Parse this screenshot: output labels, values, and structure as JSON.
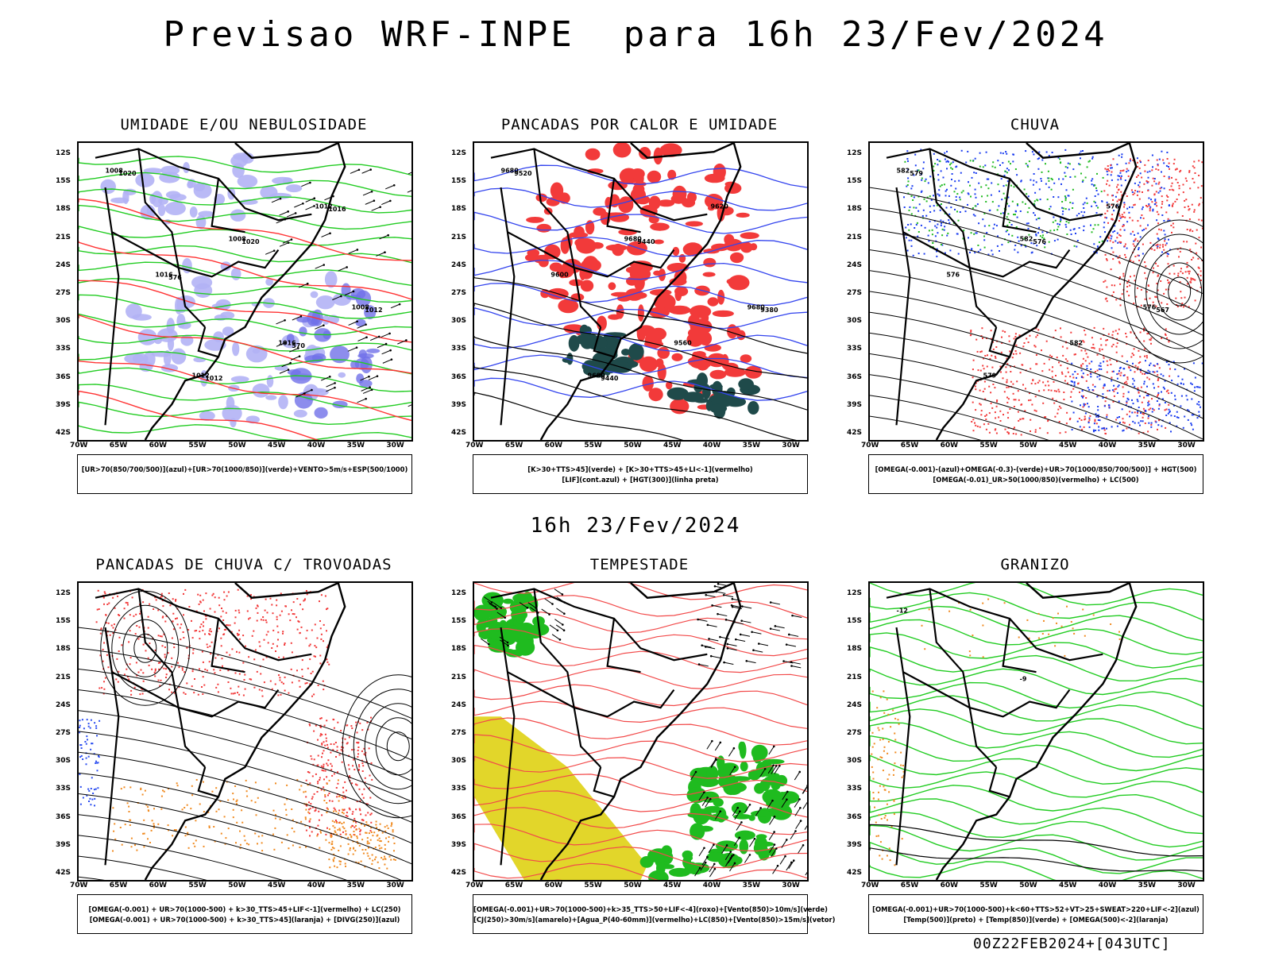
{
  "main_title": "Previsao WRF-INPE  para 16h 23/Fev/2024",
  "mid_title": "16h 23/Fev/2024",
  "footer": "00Z22FEB2024+[043UTC]",
  "lat_labels": [
    "12S",
    "15S",
    "18S",
    "21S",
    "24S",
    "27S",
    "30S",
    "33S",
    "36S",
    "39S",
    "42S"
  ],
  "lon_labels": [
    "70W",
    "65W",
    "60W",
    "55W",
    "50W",
    "45W",
    "40W",
    "35W",
    "30W"
  ],
  "panels": [
    {
      "title": "UMIDADE E/OU NEBULOSIDADE",
      "legend": [
        "[UR>70(850/700/500)](azul)+[UR>70(1000/850)](verde)+VENTO>5m/s+ESP(500/1000)"
      ],
      "colors": {
        "fill1": "#b3b3f5",
        "fill2": "#7070e8",
        "line1": "#22cc22",
        "line2": "#ff3333"
      },
      "contour_labels": [
        "1008",
        "1008",
        "1008",
        "1012",
        "1012",
        "1016",
        "1016",
        "1020",
        "1020",
        "1012",
        "1012",
        "1016",
        "576",
        "570"
      ]
    },
    {
      "title": "PANCADAS POR CALOR E UMIDADE",
      "legend": [
        "[K>30+TTS>45](verde) + [K>30+TTS>45+LI<-1](vermelho)",
        "[LIF](cont.azul) + [HGT(300)](linha preta)"
      ],
      "colors": {
        "fill1": "#f23a3a",
        "fill2": "#1f4a4a",
        "line1": "#3344ee"
      },
      "contour_labels": [
        "9680",
        "9680",
        "9680",
        "9680",
        "9620",
        "9600",
        "9560",
        "9520",
        "9440",
        "9380",
        "9440"
      ]
    },
    {
      "title": "CHUVA",
      "legend": [
        "[OMEGA(-0.001)-(azul)+OMEGA(-0.3)-(verde)+UR>70(1000/850/700/500)] + HGT(500)",
        "[OMEGA(-0.01)_UR>50(1000/850)(vermelho) + LC(500)"
      ],
      "colors": {
        "fill1": "#f23a3a",
        "fill2": "#1a3cf0",
        "fill3": "#22bb22"
      },
      "contour_labels": [
        "582",
        "582",
        "576",
        "579",
        "576",
        "576",
        "582",
        "579",
        "576",
        "567"
      ]
    },
    {
      "title": "PANCADAS DE CHUVA C/ TROVOADAS",
      "legend": [
        "[OMEGA(-0.001) + UR>70(1000-500) + k>30_TTS>45+LIF<-1](vermelho) + LC(250)",
        "[OMEGA(-0.001) + UR>70(1000-500) + k>30_TTS>45](laranja) + [DIVG(250)](azul)"
      ],
      "colors": {
        "fill1": "#f23a3a",
        "fill2": "#f08a20",
        "fill3": "#2a4cf0"
      },
      "contour_labels": []
    },
    {
      "title": "TEMPESTADE",
      "legend": [
        "[OMEGA(-0.001)+UR>70(1000-500)+k>35_TTS>50+LIF<-4](roxo)+[Vento(850)>10m/s](verde)",
        "[CJ(250)>30m/s](amarelo)+[Agua_P(40-60mm)](vermelho)+LC(850)+[Vento(850)>15m/s](vetor)"
      ],
      "colors": {
        "fill1": "#e2d62a",
        "fill2": "#1fbb1f",
        "line1": "#f24a4a"
      },
      "contour_labels": []
    },
    {
      "title": "GRANIZO",
      "legend": [
        "[OMEGA(-0.001)+UR>70(1000-500)+k<60+TTS>52+VT>25+SWEAT>220+LIF<-2](azul)",
        "[Temp(500)](preto) + [Temp(850)](verde) + [OMEGA(500)<-2](laranja)"
      ],
      "colors": {
        "line1": "#22cc22",
        "fill1": "#f08a20"
      },
      "contour_labels": [
        "-12",
        "-9"
      ]
    }
  ]
}
